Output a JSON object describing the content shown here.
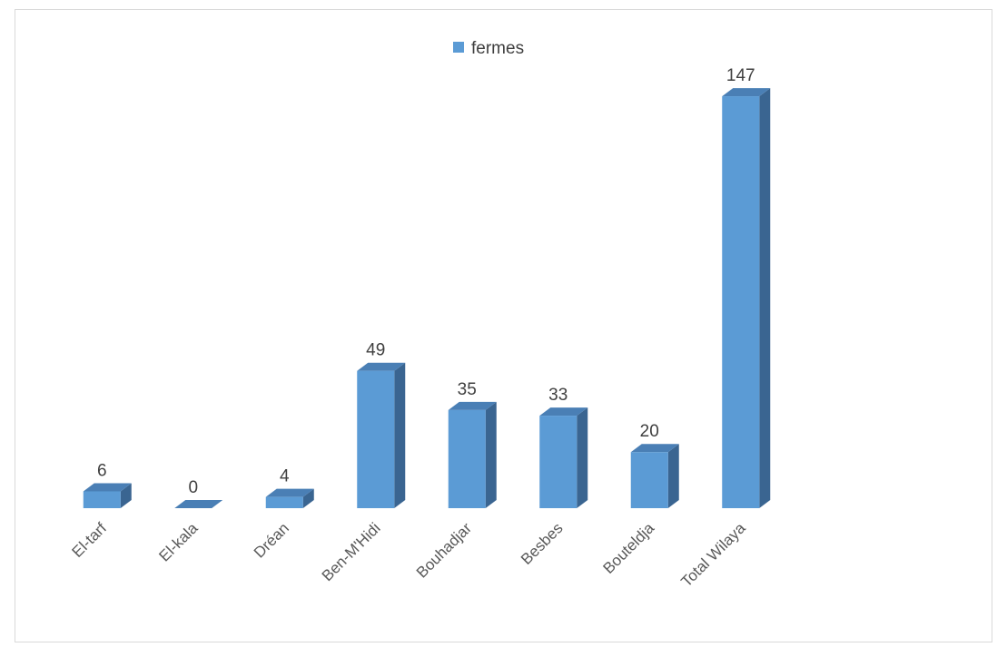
{
  "chart_data": {
    "type": "bar",
    "style": "3d-column",
    "categories": [
      "El-tarf",
      "El-kala",
      "Dréan",
      "Ben-M'Hidi",
      "Bouhadjar",
      "Besbes",
      "Bouteldja",
      "Total Wilaya"
    ],
    "series": [
      {
        "name": "fermes",
        "values": [
          6,
          0,
          4,
          49,
          35,
          33,
          20,
          147
        ],
        "color": "#5b9bd5"
      }
    ],
    "ylim": [
      0,
      150
    ],
    "grid": false,
    "legend": "top-center",
    "data_labels": true
  },
  "colors": {
    "front": "#5b9bd5",
    "top": "#4a7fb5",
    "side": "#3a6591",
    "border": "#d9d9d9"
  }
}
